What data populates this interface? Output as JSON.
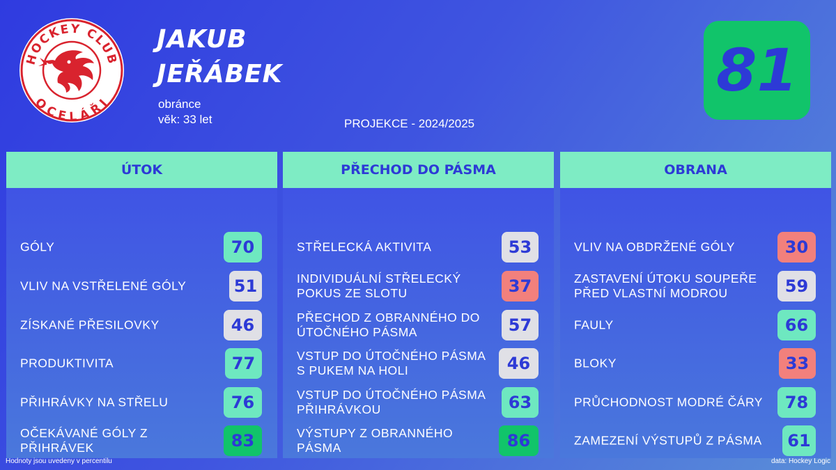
{
  "player": {
    "first_name": "JAKUB",
    "last_name": "JEŘÁBEK",
    "position": "obránce",
    "age": "věk: 33 let",
    "overall": "81"
  },
  "projection": "PROJEKCE - 2024/2025",
  "logo": {
    "icon": "hockey-club-ocelari-dragon-logo",
    "top_text": "HOCKEY CLUB",
    "bottom_text": "OCELÁŘI"
  },
  "colors": {
    "background": "#3a4ee0",
    "header": "#7eecc4",
    "accent_text": "#2d3ad6",
    "high": "#11c46a",
    "good": "#6ee8c0",
    "neutral": "#e0e0e6",
    "low": "#f2807c"
  },
  "sections": [
    {
      "title": "ÚTOK",
      "items": [
        {
          "label": "GÓLY",
          "value": "70",
          "color": "#6ee8c0"
        },
        {
          "label": "VLIV NA VSTŘELENÉ GÓLY",
          "value": "51",
          "color": "#e0e0e6"
        },
        {
          "label": "ZÍSKANÉ PŘESILOVKY",
          "value": "46",
          "color": "#e0e0e6"
        },
        {
          "label": "PRODUKTIVITA",
          "value": "77",
          "color": "#6ee8c0"
        },
        {
          "label": "PŘIHRÁVKY NA STŘELU",
          "value": "76",
          "color": "#6ee8c0"
        },
        {
          "label": "OČEKÁVANÉ GÓLY Z PŘIHRÁVEK",
          "value": "83",
          "color": "#11c46a"
        }
      ]
    },
    {
      "title": "PŘECHOD DO PÁSMA",
      "items": [
        {
          "label": "STŘELECKÁ AKTIVITA",
          "value": "53",
          "color": "#e0e0e6"
        },
        {
          "label": "INDIVIDUÁLNÍ STŘELECKÝ POKUS ZE SLOTU",
          "value": "37",
          "color": "#f2807c"
        },
        {
          "label": "PŘECHOD Z OBRANNÉHO DO ÚTOČNÉHO PÁSMA",
          "value": "57",
          "color": "#e0e0e6"
        },
        {
          "label": "VSTUP DO ÚTOČNÉHO PÁSMA S PUKEM NA HOLI",
          "value": "46",
          "color": "#e0e0e6"
        },
        {
          "label": "VSTUP DO ÚTOČNÉHO PÁSMA PŘIHRÁVKOU",
          "value": "63",
          "color": "#6ee8c0"
        },
        {
          "label": "VÝSTUPY Z OBRANNÉHO PÁSMA",
          "value": "86",
          "color": "#11c46a"
        }
      ]
    },
    {
      "title": "OBRANA",
      "items": [
        {
          "label": "VLIV NA OBDRŽENÉ GÓLY",
          "value": "30",
          "color": "#f2807c"
        },
        {
          "label": "ZASTAVENÍ ÚTOKU SOUPEŘE PŘED VLASTNÍ MODROU",
          "value": "59",
          "color": "#e0e0e6"
        },
        {
          "label": "FAULY",
          "value": "66",
          "color": "#6ee8c0"
        },
        {
          "label": "BLOKY",
          "value": "33",
          "color": "#f2807c"
        },
        {
          "label": "PRŮCHODNOST MODRÉ ČÁRY",
          "value": "78",
          "color": "#6ee8c0"
        },
        {
          "label": "ZAMEZENÍ VÝSTUPŮ Z PÁSMA",
          "value": "61",
          "color": "#6ee8c0"
        }
      ]
    }
  ],
  "footer": {
    "note": "Hodnoty jsou uvedeny v percentilu",
    "source": "data: Hockey Logic"
  }
}
